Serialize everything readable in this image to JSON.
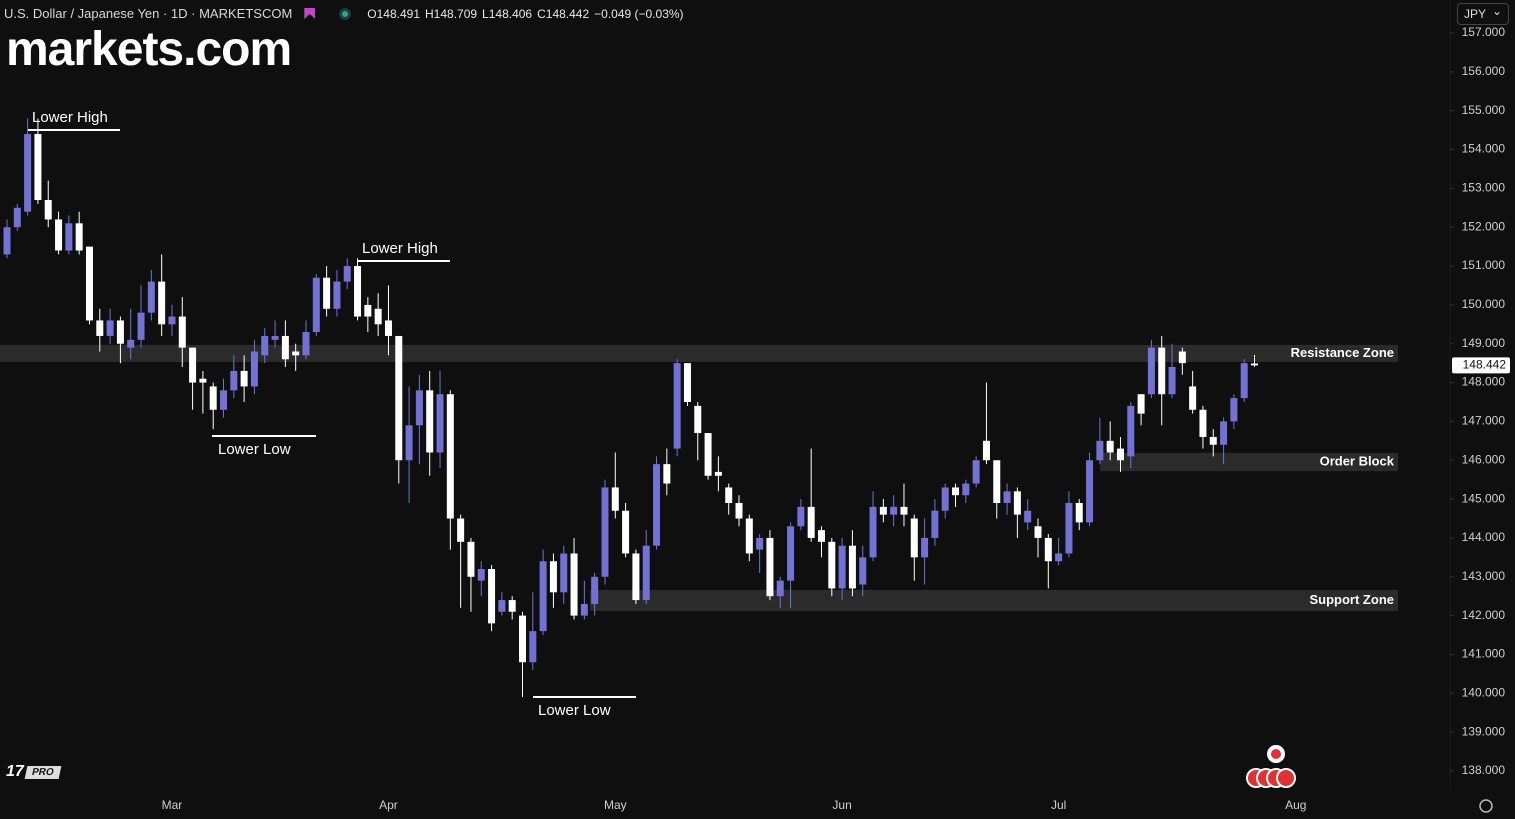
{
  "brand": "markets.com",
  "currency": "JPY",
  "badge": "PRO",
  "chart_data": {
    "type": "candlestick",
    "title": "U.S. Dollar / Japanese Yen · 1D · MARKETSCOM",
    "ohlc_text": [
      "O148.491",
      "H148.709",
      "L148.406",
      "C148.442",
      "−0.049 (−0.03%)"
    ],
    "categories": [
      null,
      null,
      null,
      null,
      null,
      null,
      null,
      null,
      null,
      null,
      null,
      null,
      null,
      null,
      null,
      null,
      "Mar",
      null,
      null,
      null,
      null,
      null,
      null,
      null,
      null,
      null,
      null,
      null,
      null,
      null,
      null,
      null,
      null,
      null,
      null,
      null,
      null,
      "Apr",
      null,
      null,
      null,
      null,
      null,
      null,
      null,
      null,
      null,
      null,
      null,
      null,
      null,
      null,
      null,
      null,
      null,
      null,
      null,
      null,
      null,
      "May",
      null,
      null,
      null,
      null,
      null,
      null,
      null,
      null,
      null,
      null,
      null,
      null,
      null,
      null,
      null,
      null,
      null,
      null,
      null,
      null,
      null,
      "Jun",
      null,
      null,
      null,
      null,
      null,
      null,
      null,
      null,
      null,
      null,
      null,
      null,
      null,
      null,
      null,
      null,
      null,
      null,
      null,
      null,
      "Jul",
      null,
      null,
      null,
      null,
      null,
      null,
      null,
      null,
      null,
      null,
      null,
      null,
      null,
      null,
      null,
      null,
      null,
      null,
      null,
      null,
      null,
      null,
      "Aug"
    ],
    "open": [
      151.3,
      152.0,
      152.4,
      154.4,
      152.7,
      152.2,
      151.4,
      152.1,
      151.5,
      149.6,
      149.2,
      149.6,
      148.9,
      149.1,
      149.8,
      150.6,
      149.5,
      149.7,
      148.9,
      148.1,
      147.9,
      147.3,
      147.8,
      148.3,
      147.9,
      148.7,
      149.1,
      149.2,
      148.8,
      148.7,
      149.3,
      150.7,
      149.9,
      150.6,
      151.0,
      150.0,
      149.9,
      149.6,
      149.2,
      146.0,
      146.9,
      147.8,
      146.2,
      147.7,
      144.5,
      143.9,
      142.9,
      143.2,
      142.1,
      142.4,
      142.0,
      140.8,
      141.6,
      143.4,
      142.6,
      143.6,
      142.0,
      142.3,
      143.0,
      145.3,
      144.7,
      143.6,
      142.4,
      143.8,
      145.9,
      146.3,
      148.5,
      147.4,
      146.7,
      145.7,
      145.3,
      144.9,
      144.5,
      143.7,
      144.0,
      142.5,
      142.9,
      144.3,
      144.8,
      144.2,
      143.9,
      142.7,
      143.8,
      142.8,
      143.5,
      144.8,
      144.6,
      144.8,
      144.5,
      143.5,
      144.0,
      144.7,
      145.3,
      145.1,
      145.4,
      146.5,
      146.0,
      144.9,
      145.2,
      144.4,
      144.3,
      144.0,
      143.4,
      143.6,
      144.9,
      144.4,
      146.0,
      146.5,
      146.3,
      146.1,
      147.7,
      147.7,
      148.9,
      147.7,
      148.8,
      147.9,
      147.3,
      146.6,
      146.4,
      147.0,
      147.6,
      148.491,
      null,
      null,
      null,
      null
    ],
    "high": [
      152.2,
      152.6,
      154.8,
      154.8,
      153.2,
      152.4,
      152.3,
      152.4,
      151.5,
      149.9,
      149.9,
      149.7,
      149.9,
      150.5,
      150.9,
      151.3,
      150.0,
      150.2,
      148.9,
      148.3,
      148.0,
      148.1,
      148.7,
      148.7,
      149.1,
      149.4,
      149.6,
      149.6,
      149.0,
      149.6,
      150.8,
      151.0,
      150.9,
      151.2,
      151.2,
      150.2,
      150.3,
      150.5,
      149.2,
      147.9,
      148.2,
      148.3,
      148.3,
      147.8,
      144.6,
      144.0,
      143.4,
      143.3,
      142.6,
      142.5,
      142.1,
      142.6,
      143.7,
      143.6,
      143.8,
      144.0,
      142.9,
      143.1,
      145.5,
      146.2,
      144.9,
      143.7,
      144.2,
      146.1,
      146.3,
      148.6,
      148.5,
      147.5,
      146.7,
      146.1,
      145.4,
      145.1,
      144.6,
      144.1,
      144.2,
      143.0,
      144.4,
      145.0,
      146.3,
      144.3,
      144.0,
      144.0,
      144.2,
      143.8,
      145.2,
      145.0,
      145.1,
      145.4,
      144.6,
      144.5,
      145.0,
      145.4,
      145.4,
      145.5,
      146.1,
      148.0,
      146.0,
      145.4,
      145.3,
      145.0,
      144.5,
      144.1,
      144.0,
      145.2,
      145.0,
      146.2,
      147.1,
      147.0,
      146.6,
      147.5,
      147.7,
      149.1,
      149.2,
      149.0,
      148.9,
      148.3,
      147.4,
      146.8,
      147.1,
      147.7,
      148.6,
      148.709,
      null,
      null,
      null,
      null
    ],
    "low": [
      151.2,
      151.9,
      152.3,
      152.6,
      152.0,
      151.3,
      151.3,
      151.3,
      149.5,
      148.8,
      149.0,
      148.5,
      148.6,
      148.9,
      149.6,
      149.2,
      149.2,
      148.4,
      147.3,
      147.2,
      146.8,
      147.1,
      147.6,
      147.5,
      147.7,
      148.5,
      148.9,
      148.4,
      148.3,
      148.6,
      149.2,
      149.7,
      149.7,
      150.4,
      149.6,
      149.3,
      149.2,
      148.7,
      145.4,
      144.9,
      145.9,
      145.6,
      145.8,
      143.7,
      142.2,
      142.1,
      142.5,
      141.6,
      142.0,
      141.9,
      139.9,
      140.6,
      141.5,
      142.2,
      142.3,
      141.9,
      141.9,
      142.0,
      142.8,
      144.5,
      143.5,
      142.3,
      142.3,
      143.7,
      145.1,
      146.1,
      147.4,
      146.0,
      145.5,
      145.2,
      144.6,
      144.3,
      143.4,
      143.1,
      142.4,
      142.2,
      142.2,
      144.2,
      143.9,
      143.5,
      142.5,
      142.4,
      142.5,
      142.5,
      143.4,
      144.4,
      144.3,
      144.3,
      142.9,
      142.8,
      143.8,
      144.5,
      144.8,
      144.9,
      145.3,
      145.9,
      144.5,
      144.6,
      144.0,
      144.2,
      143.5,
      142.7,
      143.3,
      143.5,
      144.2,
      144.3,
      145.9,
      146.0,
      145.7,
      145.8,
      146.9,
      147.6,
      146.9,
      147.6,
      148.2,
      147.2,
      146.3,
      146.1,
      145.9,
      146.8,
      147.5,
      148.406,
      null,
      null,
      null,
      null
    ],
    "close": [
      152.0,
      152.5,
      154.4,
      152.7,
      152.2,
      151.4,
      152.1,
      151.4,
      149.6,
      149.2,
      149.6,
      149.0,
      149.1,
      149.8,
      150.6,
      149.5,
      149.7,
      148.9,
      148.0,
      148.0,
      147.3,
      147.8,
      148.3,
      147.9,
      148.8,
      149.2,
      149.2,
      148.6,
      148.7,
      149.3,
      150.7,
      149.9,
      150.6,
      151.0,
      149.7,
      149.7,
      149.5,
      149.2,
      146.0,
      146.9,
      147.8,
      146.2,
      147.7,
      144.5,
      143.9,
      143.0,
      143.2,
      141.8,
      142.4,
      142.1,
      140.8,
      141.6,
      143.4,
      142.6,
      143.6,
      142.0,
      142.3,
      143.0,
      145.3,
      144.7,
      143.6,
      142.4,
      143.8,
      145.9,
      145.4,
      148.5,
      147.5,
      146.7,
      145.6,
      145.6,
      144.9,
      144.5,
      143.6,
      144.0,
      142.5,
      142.9,
      144.3,
      144.8,
      144.0,
      143.9,
      142.7,
      143.8,
      142.7,
      143.5,
      144.8,
      144.6,
      144.8,
      144.6,
      143.5,
      144.0,
      144.7,
      145.3,
      145.1,
      145.4,
      146.0,
      146.0,
      144.9,
      145.2,
      144.6,
      144.7,
      144.0,
      143.4,
      143.6,
      144.9,
      144.4,
      146.0,
      146.5,
      146.2,
      146.0,
      147.4,
      147.2,
      148.9,
      147.7,
      148.4,
      148.5,
      147.3,
      146.6,
      146.4,
      147.0,
      147.6,
      148.5,
      148.442,
      null,
      null,
      null,
      null
    ],
    "up_color": "#7272d4",
    "down_color": "#ffffff",
    "ylim": [
      137.51,
      157.85
    ],
    "yticks": [
      {
        "value": 138,
        "label": "138.000"
      },
      {
        "value": 139,
        "label": "139.000"
      },
      {
        "value": 140,
        "label": "140.000"
      },
      {
        "value": 141,
        "label": "141.000"
      },
      {
        "value": 142,
        "label": "142.000"
      },
      {
        "value": 143,
        "label": "143.000"
      },
      {
        "value": 144,
        "label": "144.000"
      },
      {
        "value": 145,
        "label": "145.000"
      },
      {
        "value": 146,
        "label": "146.000"
      },
      {
        "value": 147,
        "label": "147.000"
      },
      {
        "value": 148,
        "label": "148.000"
      },
      {
        "value": 149,
        "label": "149.000"
      },
      {
        "value": 150,
        "label": "150.000"
      },
      {
        "value": 151,
        "label": "151.000"
      },
      {
        "value": 152,
        "label": "152.000"
      },
      {
        "value": 153,
        "label": "153.000"
      },
      {
        "value": 154,
        "label": "154.000"
      },
      {
        "value": 155,
        "label": "155.000"
      },
      {
        "value": 156,
        "label": "156.000"
      },
      {
        "value": 157,
        "label": "157.000"
      }
    ],
    "last_price": 148.442,
    "grid": false,
    "zones": [
      {
        "name": "Resistance Zone",
        "low": 148.53,
        "high": 148.97,
        "color": "#2b2b2b"
      },
      {
        "name": "Order Block",
        "low": 145.72,
        "high": 146.19,
        "color": "#2b2b2b"
      },
      {
        "name": "Support Zone",
        "low": 142.12,
        "high": 142.66,
        "color": "#2b2b2b"
      }
    ],
    "annotations": [
      "Lower High",
      "Lower High",
      "Lower Low",
      "Lower Low"
    ]
  }
}
